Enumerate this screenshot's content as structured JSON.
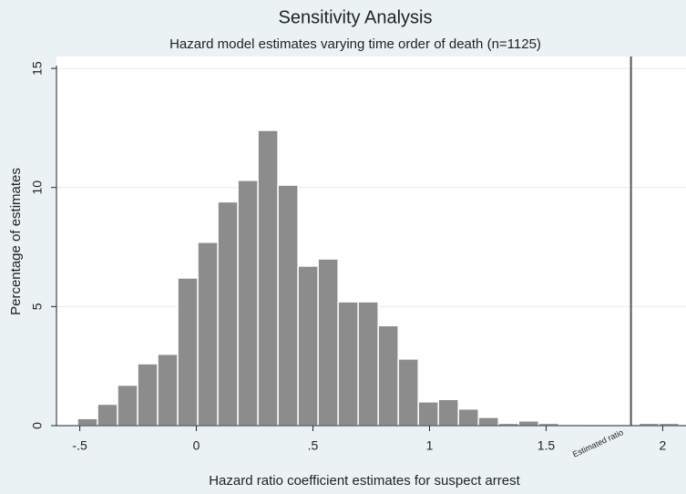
{
  "chart_data": {
    "type": "histogram",
    "title": "Sensitivity Analysis",
    "subtitle": "Hazard model estimates varying time order of death (n=1125)",
    "x_label": "Hazard ratio coefficient estimates for suspect arrest",
    "y_label": "Percentage of estimates",
    "bins": [
      -0.51,
      -0.424,
      -0.338,
      -0.252,
      -0.166,
      -0.08,
      0.006,
      0.092,
      0.178,
      0.264,
      0.35,
      0.436,
      0.522,
      0.608,
      0.694,
      0.78,
      0.866,
      0.952,
      1.038,
      1.124,
      1.21,
      1.296,
      1.382,
      1.468,
      1.554,
      1.64,
      1.726,
      1.812,
      1.898,
      1.984,
      2.07
    ],
    "counts": [
      0.3,
      0.9,
      1.7,
      2.6,
      3.0,
      6.2,
      7.7,
      9.4,
      10.3,
      12.4,
      10.1,
      6.7,
      7.0,
      5.2,
      5.2,
      4.2,
      2.8,
      1.0,
      1.1,
      0.7,
      0.35,
      0.1,
      0.2,
      0.1,
      0.05,
      0,
      0,
      0,
      0.1,
      0.1
    ],
    "color": "#8c8c8c",
    "xlim": [
      -0.6,
      2.1
    ],
    "ylim": [
      0,
      15.5
    ],
    "xticks": [
      {
        "value": -0.5,
        "label": "-.5"
      },
      0,
      {
        "value": 0.5,
        "label": ".5"
      },
      1,
      1.5,
      2
    ],
    "yticks": [
      0,
      5,
      10,
      15
    ],
    "grid": true,
    "reference_line": {
      "x": 1.864,
      "label": "Estimated ratio"
    }
  }
}
